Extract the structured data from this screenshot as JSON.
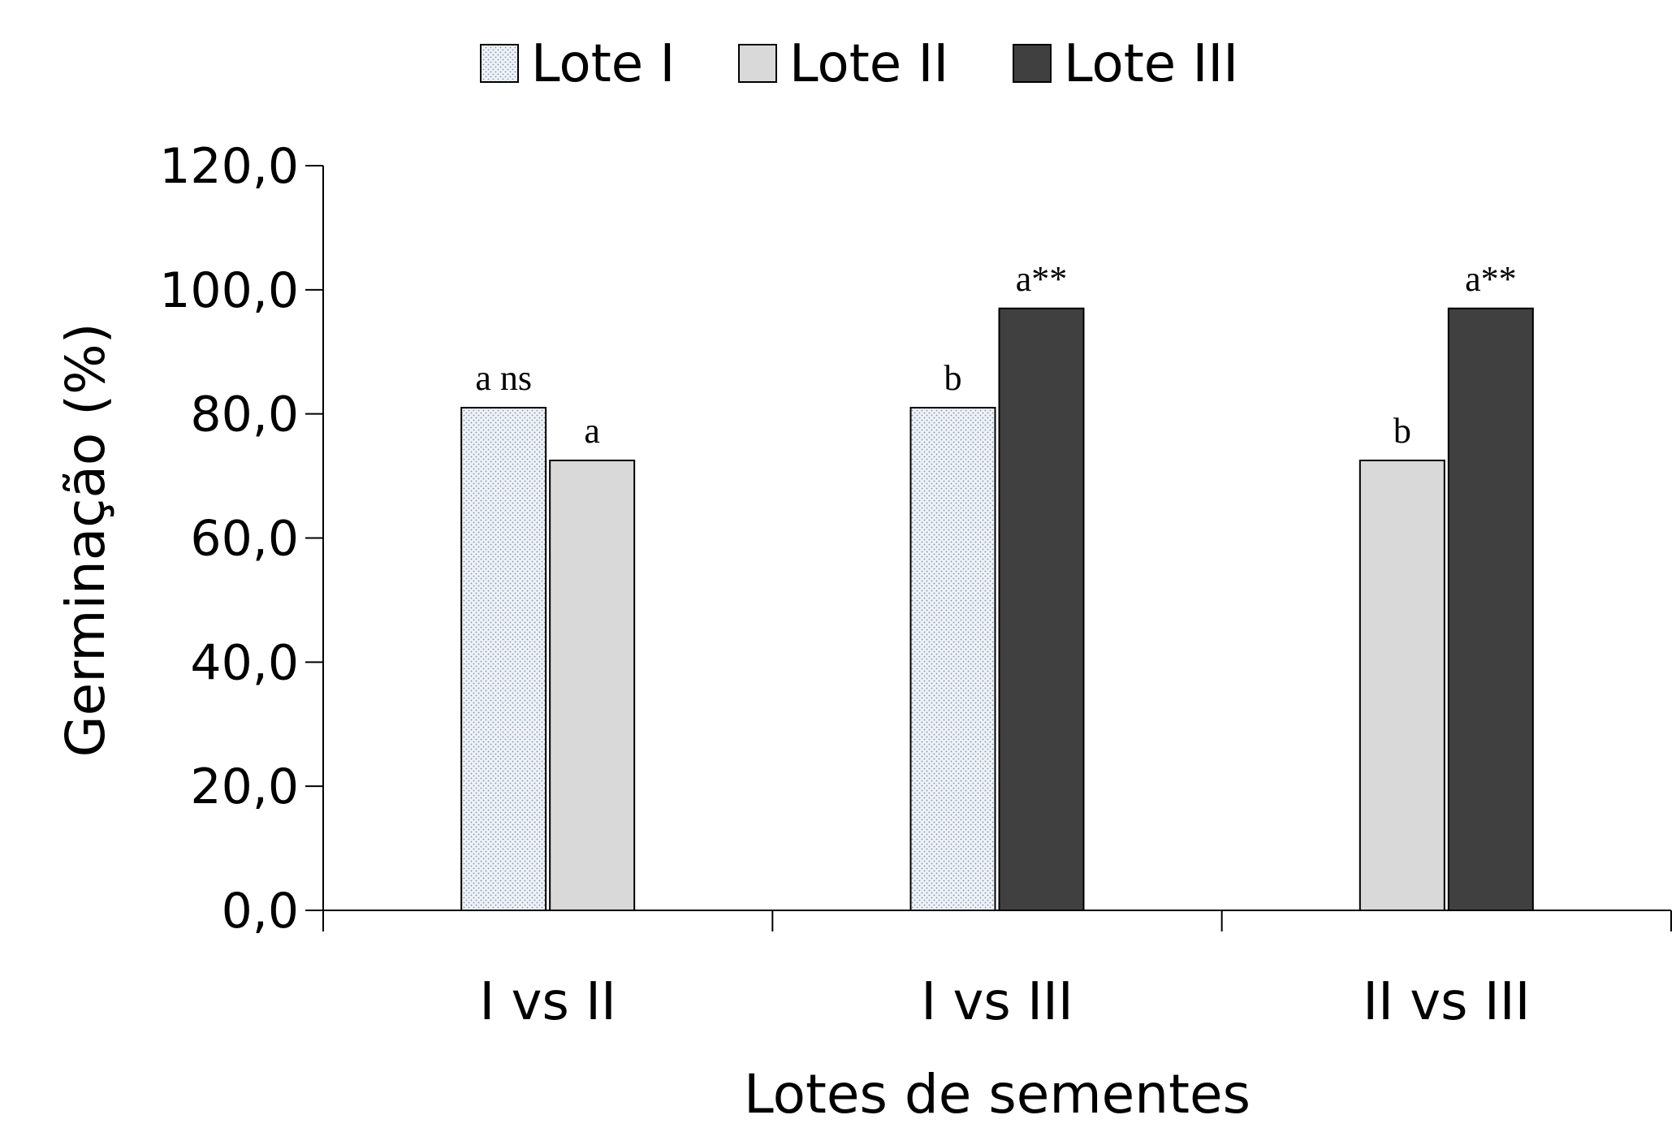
{
  "chart_data": {
    "type": "bar",
    "xlabel": "Lotes de sementes",
    "ylabel": "Germinação (%)",
    "ylim": [
      0,
      120
    ],
    "yticks": [
      "0,0",
      "20,0",
      "40,0",
      "60,0",
      "80,0",
      "100,0",
      "120,0"
    ],
    "ytick_values": [
      0,
      20,
      40,
      60,
      80,
      100,
      120
    ],
    "legend_position": "top-center",
    "series_styles": [
      {
        "name": "Lote I",
        "color": "#d9e2ea",
        "pattern": "dotted"
      },
      {
        "name": "Lote II",
        "color": "#d9d9d9",
        "pattern": "solid"
      },
      {
        "name": "Lote III",
        "color": "#404040",
        "pattern": "solid"
      }
    ],
    "groups": [
      {
        "category": "I vs II",
        "bars": [
          {
            "series": "Lote I",
            "value": 81,
            "label": "a ns"
          },
          {
            "series": "Lote II",
            "value": 72.5,
            "label": "a"
          }
        ]
      },
      {
        "category": "I vs III",
        "bars": [
          {
            "series": "Lote I",
            "value": 81,
            "label": "b"
          },
          {
            "series": "Lote III",
            "value": 97,
            "label": "a**"
          }
        ]
      },
      {
        "category": "II vs III",
        "bars": [
          {
            "series": "Lote II",
            "value": 72.5,
            "label": "b"
          },
          {
            "series": "Lote III",
            "value": 97,
            "label": "a**"
          }
        ]
      }
    ]
  }
}
